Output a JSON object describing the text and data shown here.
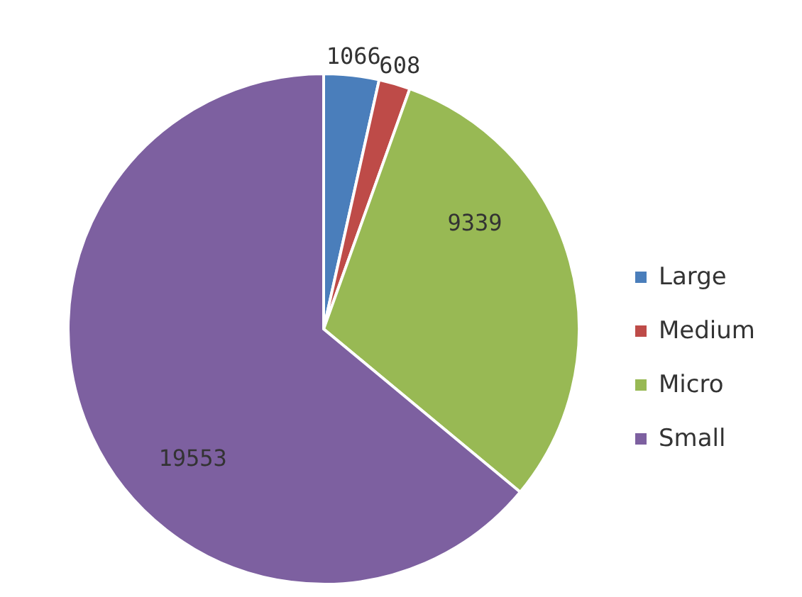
{
  "chart_data": {
    "type": "pie",
    "categories": [
      "Large",
      "Medium",
      "Micro",
      "Small"
    ],
    "values": [
      1066,
      608,
      9339,
      19553
    ],
    "colors": [
      "#4a7ebb",
      "#be4b48",
      "#98b954",
      "#7d60a0"
    ],
    "data_labels": true,
    "legend": "right"
  }
}
